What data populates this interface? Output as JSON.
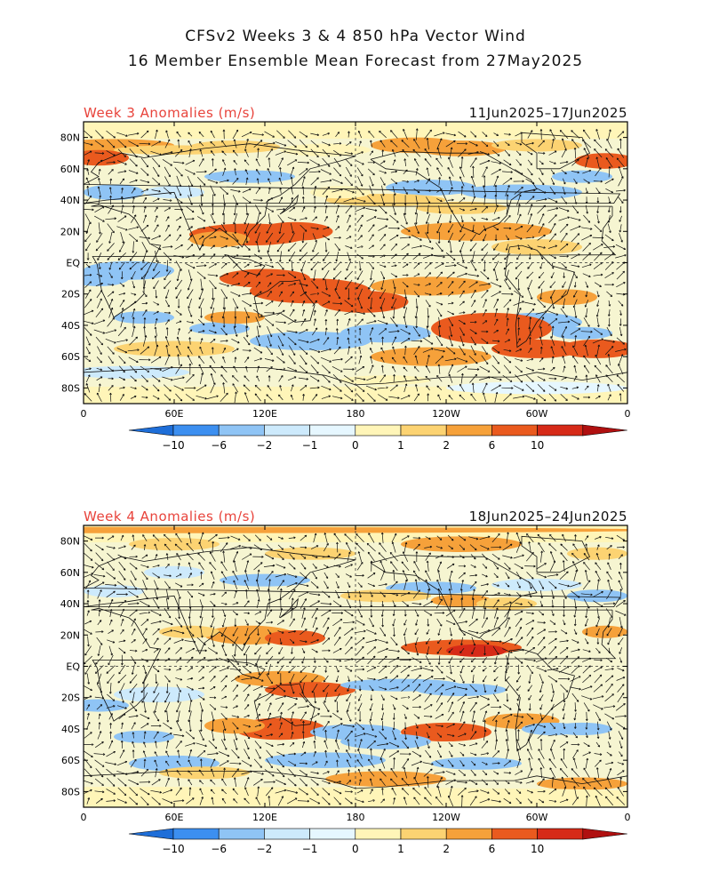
{
  "title_line1": "CFSv2 Weeks 3 & 4 850 hPa Vector Wind",
  "title_line2": "16 Member Ensemble Mean Forecast from 27May2025",
  "panels": [
    {
      "label": "Week 3 Anomalies (m/s)",
      "dates": "11Jun2025–17Jun2025"
    },
    {
      "label": "Week 4 Anomalies (m/s)",
      "dates": "18Jun2025–24Jun2025"
    }
  ],
  "lat_labels": [
    "80N",
    "60N",
    "40N",
    "20N",
    "EQ",
    "20S",
    "40S",
    "60S",
    "80S"
  ],
  "lon_labels": [
    "0",
    "60E",
    "120E",
    "180",
    "120W",
    "60W",
    "0"
  ],
  "colorbar": {
    "labels": [
      "−10",
      "−6",
      "−2",
      "−1",
      "0",
      "1",
      "2",
      "6",
      "10"
    ],
    "colors": [
      "#1e6ed8",
      "#3c8ff0",
      "#8fc4f5",
      "#cdeafc",
      "#e6f7ff",
      "#fff5b8",
      "#fcd372",
      "#f6a13a",
      "#ea5a1e",
      "#d62a18",
      "#b01010"
    ]
  }
}
